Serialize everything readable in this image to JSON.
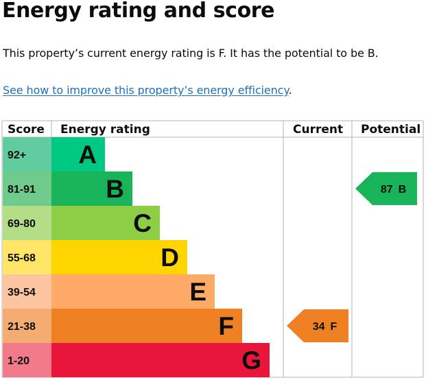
{
  "title": "Energy rating and score",
  "summary": "This property’s current energy rating is F. It has the potential to be B.",
  "improve_link": {
    "label": "See how to improve this property’s energy efficiency",
    "trailing": "."
  },
  "table": {
    "headers": {
      "score": "Score",
      "rating": "Energy rating",
      "current": "Current",
      "potential": "Potential"
    },
    "bands": [
      {
        "score": "92+",
        "letter": "A",
        "color": "#00c781",
        "score_bg": "#62cba0"
      },
      {
        "score": "81-91",
        "letter": "B",
        "color": "#19b459",
        "score_bg": "#6fcb8b"
      },
      {
        "score": "69-80",
        "letter": "C",
        "color": "#8dce46",
        "score_bg": "#b3de87"
      },
      {
        "score": "55-68",
        "letter": "D",
        "color": "#ffd500",
        "score_bg": "#ffe566"
      },
      {
        "score": "39-54",
        "letter": "E",
        "color": "#fcaa65",
        "score_bg": "#fdc59f"
      },
      {
        "score": "21-38",
        "letter": "F",
        "color": "#ef8023",
        "score_bg": "#f4ac72"
      },
      {
        "score": "1-20",
        "letter": "G",
        "color": "#e9153b",
        "score_bg": "#f17a8b"
      }
    ],
    "current": {
      "score": "34",
      "band": "F",
      "color": "#ef8023",
      "text_color": "#0b0c0c"
    },
    "potential": {
      "score": "87",
      "band": "B",
      "color": "#19b459",
      "text_color": "#0b0c0c"
    }
  },
  "colors": {
    "link": "#1d70b8",
    "border": "#b1b4b6",
    "text": "#0b0c0c"
  }
}
